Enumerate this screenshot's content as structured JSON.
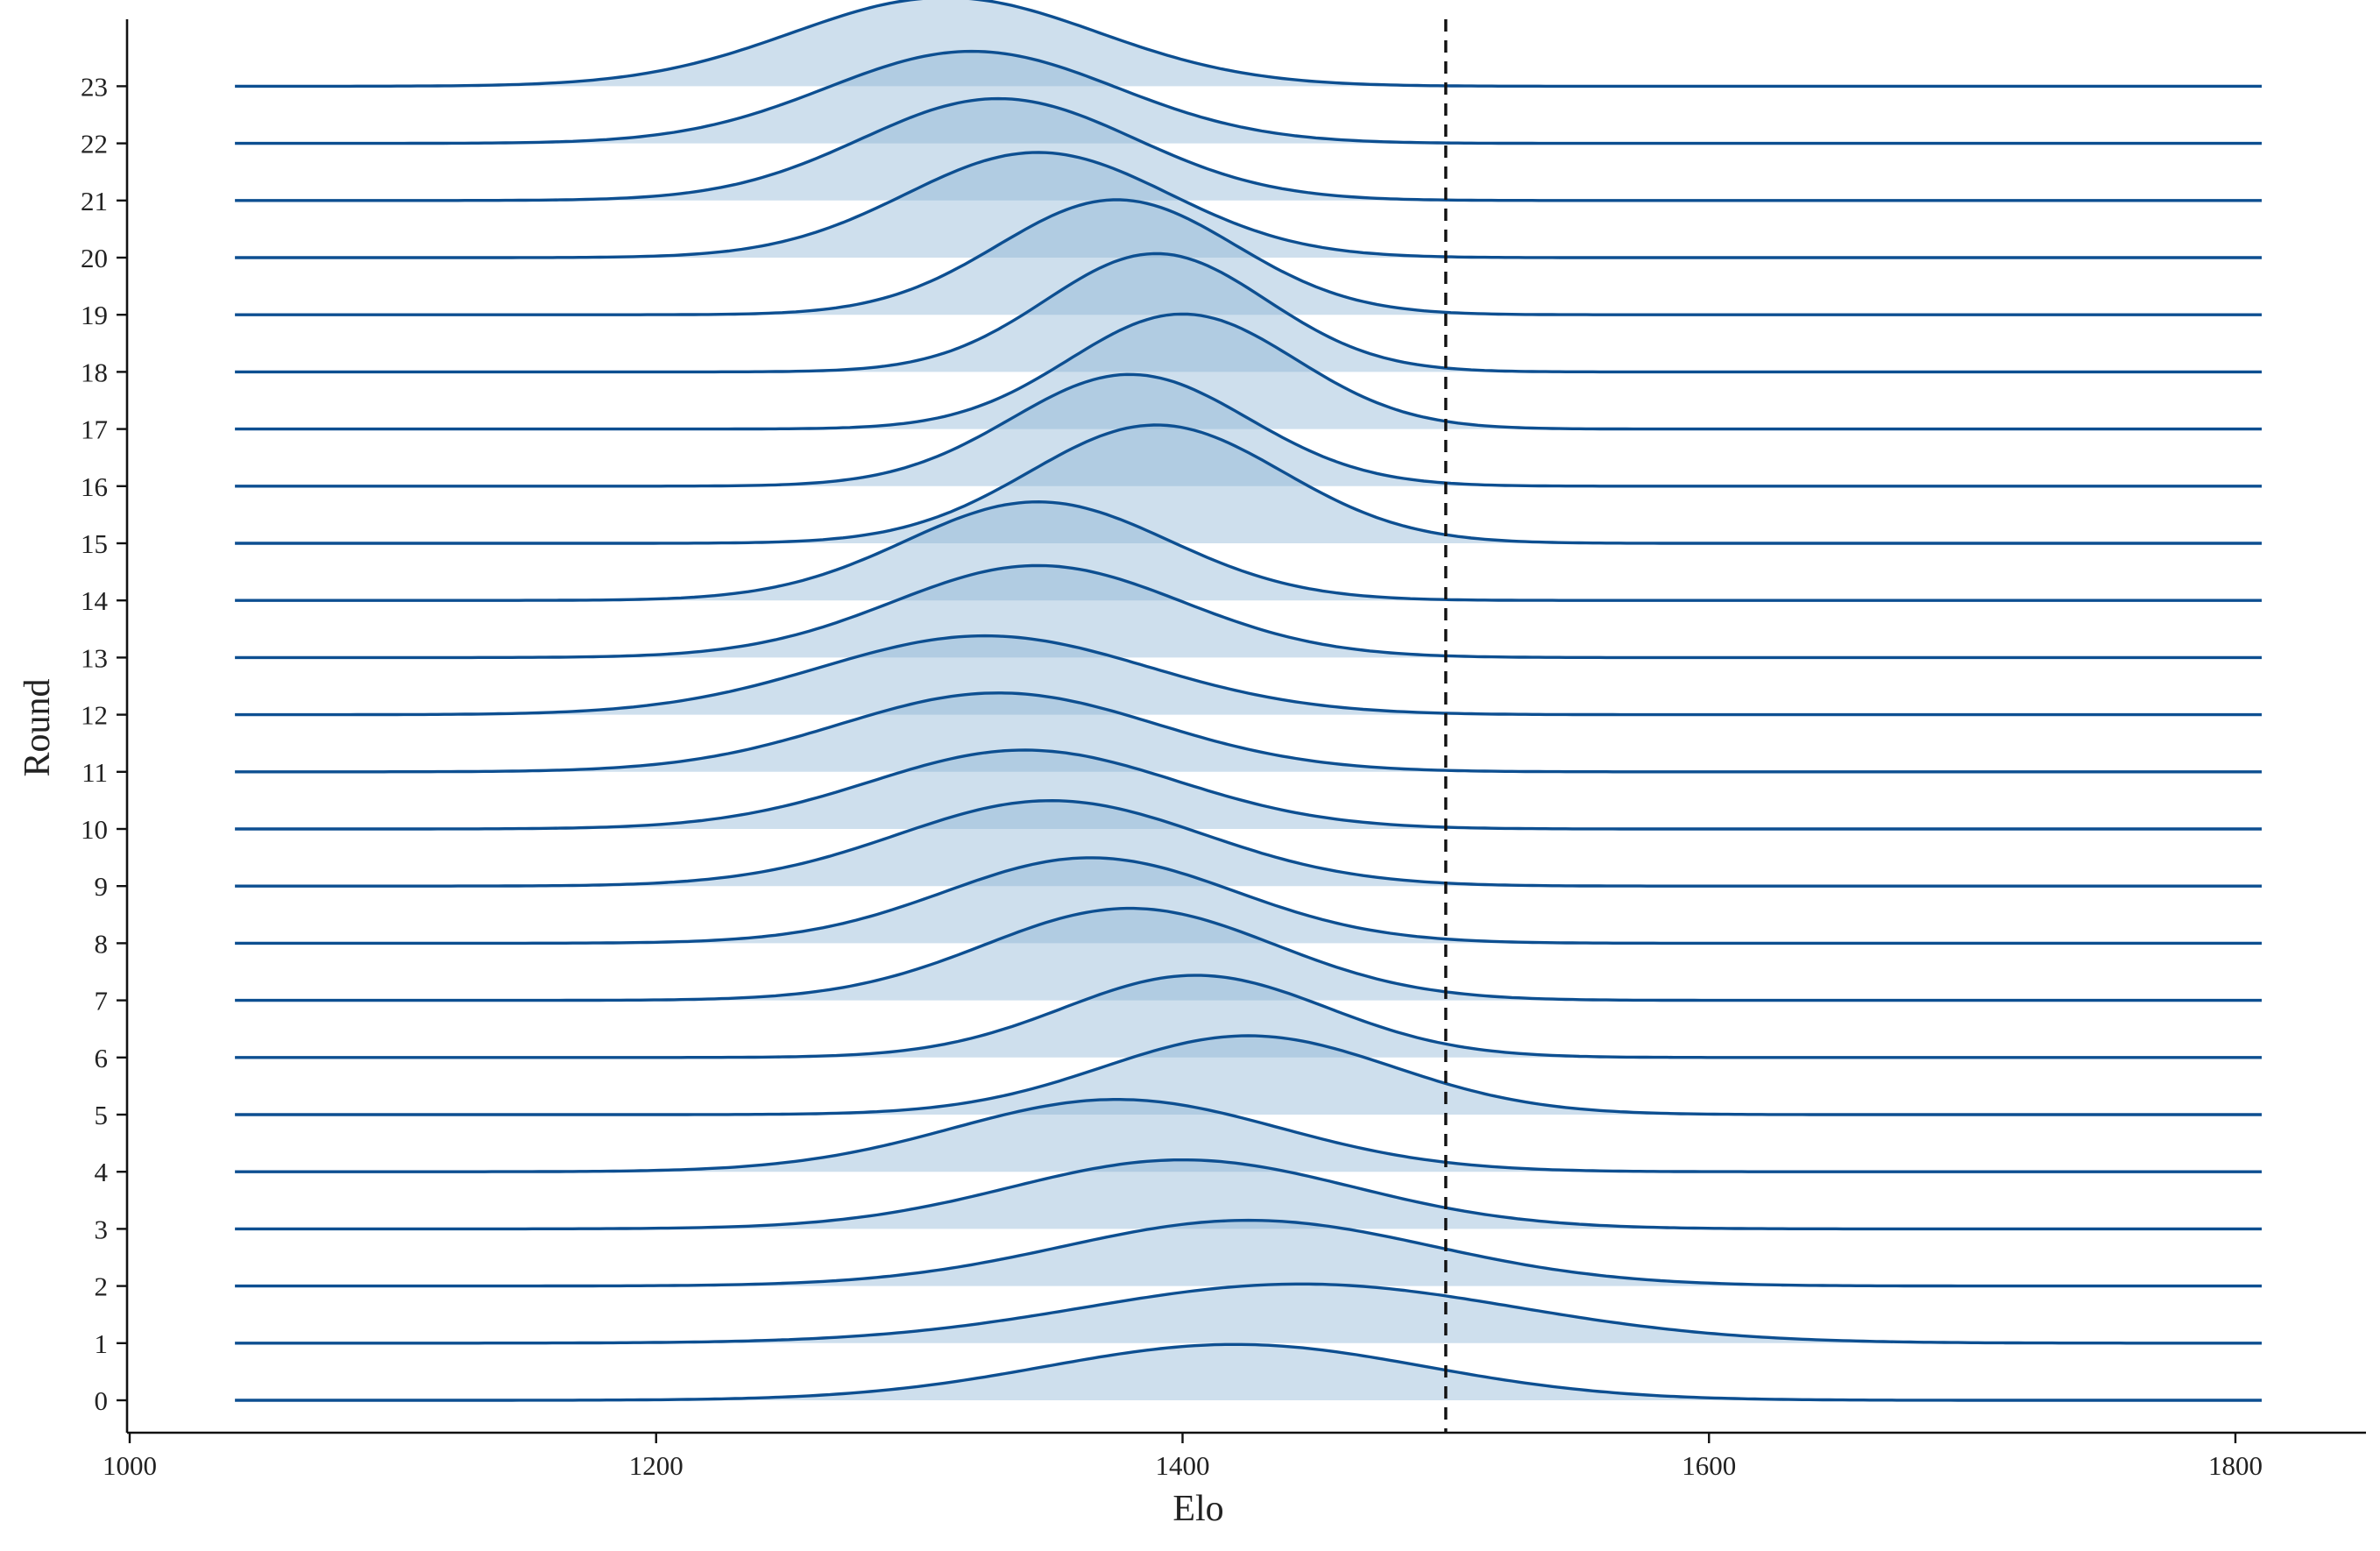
{
  "chart_data": {
    "type": "ridgeline",
    "xlabel": "Elo",
    "ylabel": "Round",
    "xlim": [
      1000,
      1800
    ],
    "xticks": [
      1000,
      1200,
      1400,
      1600,
      1800
    ],
    "xtick_labels": [
      "1000",
      "1200",
      "1400",
      "1600",
      "1800"
    ],
    "density_x_range": [
      1040,
      1810
    ],
    "reference_line_x": 1500,
    "categories": [
      "0",
      "1",
      "2",
      "3",
      "4",
      "5",
      "6",
      "7",
      "8",
      "9",
      "10",
      "11",
      "12",
      "13",
      "14",
      "15",
      "16",
      "17",
      "18",
      "19",
      "20",
      "21",
      "22",
      "23"
    ],
    "series": [
      {
        "round": "0",
        "mean": 1420,
        "sd": 72,
        "peak": 0.85
      },
      {
        "round": "1",
        "mean": 1445,
        "sd": 82,
        "peak": 0.9
      },
      {
        "round": "2",
        "mean": 1425,
        "sd": 70,
        "peak": 1.0
      },
      {
        "round": "3",
        "mean": 1400,
        "sd": 65,
        "peak": 1.05
      },
      {
        "round": "4",
        "mean": 1375,
        "sd": 62,
        "peak": 1.1
      },
      {
        "round": "5",
        "mean": 1425,
        "sd": 55,
        "peak": 1.2
      },
      {
        "round": "6",
        "mean": 1405,
        "sd": 50,
        "peak": 1.25
      },
      {
        "round": "7",
        "mean": 1380,
        "sd": 55,
        "peak": 1.4
      },
      {
        "round": "8",
        "mean": 1365,
        "sd": 55,
        "peak": 1.3
      },
      {
        "round": "9",
        "mean": 1350,
        "sd": 58,
        "peak": 1.3
      },
      {
        "round": "10",
        "mean": 1340,
        "sd": 58,
        "peak": 1.2
      },
      {
        "round": "11",
        "mean": 1330,
        "sd": 60,
        "peak": 1.2
      },
      {
        "round": "12",
        "mean": 1325,
        "sd": 62,
        "peak": 1.2
      },
      {
        "round": "13",
        "mean": 1345,
        "sd": 55,
        "peak": 1.4
      },
      {
        "round": "14",
        "mean": 1345,
        "sd": 50,
        "peak": 1.5
      },
      {
        "round": "15",
        "mean": 1390,
        "sd": 48,
        "peak": 1.8
      },
      {
        "round": "16",
        "mean": 1380,
        "sd": 45,
        "peak": 1.7
      },
      {
        "round": "17",
        "mean": 1400,
        "sd": 43,
        "peak": 1.75
      },
      {
        "round": "18",
        "mean": 1390,
        "sd": 42,
        "peak": 1.8
      },
      {
        "round": "19",
        "mean": 1375,
        "sd": 45,
        "peak": 1.75
      },
      {
        "round": "20",
        "mean": 1345,
        "sd": 50,
        "peak": 1.6
      },
      {
        "round": "21",
        "mean": 1330,
        "sd": 52,
        "peak": 1.55
      },
      {
        "round": "22",
        "mean": 1320,
        "sd": 55,
        "peak": 1.4
      },
      {
        "round": "23",
        "mean": 1310,
        "sd": 58,
        "peak": 1.35
      }
    ],
    "grid": false,
    "legend": "none",
    "colors": {
      "line": "#0d4f91",
      "fill": "#8bb3d4",
      "axis": "#111111",
      "reference": "#111111"
    }
  }
}
